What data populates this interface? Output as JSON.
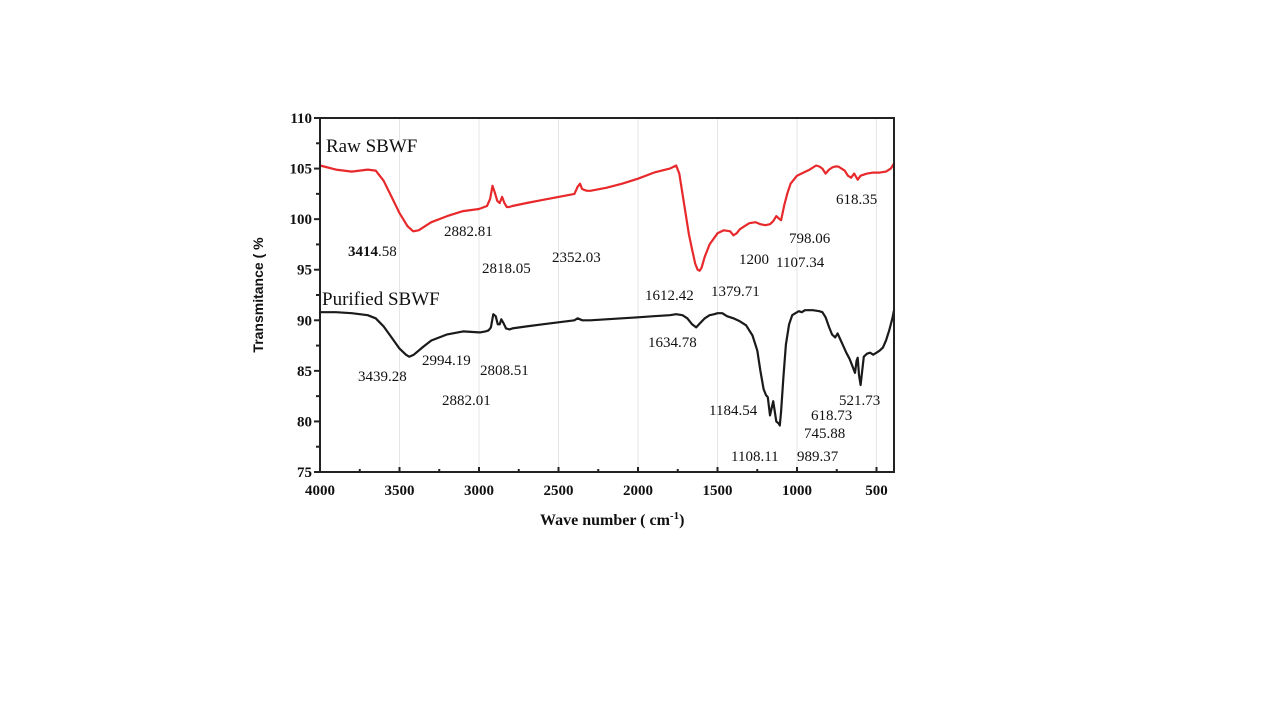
{
  "chart_data": {
    "type": "line",
    "title": "",
    "xlabel": "Wave number ( cm",
    "xlabel_sup": "-1",
    "xlabel_end": ")",
    "ylabel": "Transmitance ( %",
    "xlim": [
      4000,
      390
    ],
    "ylim": [
      75,
      110
    ],
    "x_ticks": [
      4000,
      3500,
      3000,
      2500,
      2000,
      1500,
      1000,
      500
    ],
    "x_tick_labels": [
      "4000",
      "3500",
      "3000",
      "2500",
      "2000",
      "1500",
      "1000",
      "500"
    ],
    "y_ticks": [
      75,
      80,
      85,
      90,
      95,
      100,
      105,
      110
    ],
    "y_tick_labels": [
      "75",
      "80",
      "85",
      "90",
      "95",
      "100",
      "105",
      "110"
    ],
    "grid": "vertical",
    "colors": {
      "raw": "#e8292b",
      "purified": "#1a1a1a",
      "axis": "#222222",
      "grid": "#e6e6e6"
    },
    "series": [
      {
        "name": "Raw SBWF",
        "label": "Raw SBWF",
        "x": [
          4000,
          3900,
          3800,
          3700,
          3650,
          3600,
          3550,
          3500,
          3450,
          3414,
          3380,
          3300,
          3200,
          3100,
          3000,
          2950,
          2930,
          2915,
          2900,
          2885,
          2870,
          2855,
          2840,
          2825,
          2810,
          2790,
          2700,
          2600,
          2500,
          2400,
          2380,
          2365,
          2352,
          2340,
          2320,
          2300,
          2200,
          2100,
          2000,
          1900,
          1800,
          1760,
          1740,
          1720,
          1700,
          1680,
          1660,
          1640,
          1625,
          1612,
          1600,
          1580,
          1550,
          1500,
          1460,
          1420,
          1400,
          1380,
          1360,
          1330,
          1300,
          1260,
          1230,
          1200,
          1170,
          1150,
          1130,
          1110,
          1100,
          1080,
          1060,
          1040,
          1000,
          960,
          920,
          880,
          860,
          840,
          820,
          798,
          780,
          760,
          740,
          720,
          700,
          680,
          660,
          640,
          618,
          600,
          560,
          520,
          480,
          440,
          410,
          390
        ],
        "y": [
          105.3,
          104.9,
          104.7,
          104.9,
          104.8,
          103.8,
          102.2,
          100.6,
          99.3,
          98.8,
          98.9,
          99.7,
          100.3,
          100.8,
          101.0,
          101.3,
          102.0,
          103.3,
          102.6,
          101.8,
          101.6,
          102.2,
          101.6,
          101.2,
          101.2,
          101.3,
          101.6,
          101.9,
          102.2,
          102.5,
          103.2,
          103.5,
          103.0,
          102.9,
          102.8,
          102.8,
          103.1,
          103.5,
          104.0,
          104.6,
          105.0,
          105.3,
          104.5,
          102.5,
          100.5,
          98.5,
          97.0,
          95.6,
          95.0,
          94.9,
          95.2,
          96.3,
          97.5,
          98.6,
          98.9,
          98.8,
          98.4,
          98.6,
          99.0,
          99.3,
          99.6,
          99.7,
          99.5,
          99.4,
          99.5,
          99.8,
          100.3,
          100.0,
          99.9,
          101.4,
          102.6,
          103.5,
          104.3,
          104.6,
          104.9,
          105.3,
          105.2,
          105.0,
          104.5,
          104.9,
          105.1,
          105.2,
          105.2,
          105.0,
          104.8,
          104.3,
          104.1,
          104.5,
          103.9,
          104.3,
          104.5,
          104.6,
          104.6,
          104.7,
          105.0,
          105.5
        ]
      },
      {
        "name": "Purified SBWF",
        "label": "Purified SBWF",
        "x": [
          4000,
          3900,
          3800,
          3700,
          3650,
          3600,
          3550,
          3500,
          3460,
          3439,
          3410,
          3350,
          3300,
          3200,
          3100,
          3000,
          2994,
          2960,
          2940,
          2925,
          2910,
          2895,
          2882,
          2870,
          2860,
          2845,
          2830,
          2808,
          2790,
          2700,
          2600,
          2500,
          2400,
          2380,
          2350,
          2300,
          2200,
          2100,
          2000,
          1900,
          1800,
          1760,
          1720,
          1690,
          1660,
          1634,
          1610,
          1580,
          1550,
          1520,
          1500,
          1470,
          1440,
          1400,
          1360,
          1320,
          1280,
          1250,
          1230,
          1210,
          1195,
          1184,
          1170,
          1150,
          1130,
          1115,
          1108,
          1100,
          1085,
          1070,
          1050,
          1030,
          1010,
          989,
          970,
          950,
          900,
          860,
          840,
          820,
          800,
          780,
          760,
          745,
          730,
          710,
          690,
          670,
          650,
          635,
          625,
          618,
          610,
          600,
          580,
          560,
          540,
          521,
          500,
          480,
          460,
          440,
          420,
          400,
          390
        ],
        "y": [
          90.8,
          90.8,
          90.7,
          90.5,
          90.2,
          89.4,
          88.3,
          87.2,
          86.6,
          86.4,
          86.6,
          87.4,
          88.0,
          88.6,
          88.9,
          88.8,
          88.8,
          88.9,
          89.0,
          89.3,
          90.6,
          90.4,
          89.6,
          89.6,
          90.1,
          89.7,
          89.2,
          89.1,
          89.2,
          89.4,
          89.6,
          89.8,
          90.0,
          90.2,
          90.0,
          90.0,
          90.1,
          90.2,
          90.3,
          90.4,
          90.5,
          90.6,
          90.5,
          90.2,
          89.6,
          89.3,
          89.7,
          90.2,
          90.5,
          90.6,
          90.7,
          90.7,
          90.4,
          90.2,
          89.9,
          89.5,
          88.5,
          87.0,
          85.0,
          83.2,
          82.6,
          82.4,
          80.6,
          82.0,
          80.0,
          79.8,
          79.6,
          81.0,
          84.5,
          87.6,
          89.6,
          90.5,
          90.7,
          90.9,
          90.8,
          91.0,
          91.0,
          90.9,
          90.8,
          90.3,
          89.4,
          88.6,
          88.3,
          88.7,
          88.2,
          87.5,
          86.8,
          86.2,
          85.4,
          84.8,
          86.0,
          86.3,
          84.6,
          83.6,
          86.4,
          86.7,
          86.8,
          86.6,
          86.8,
          87.0,
          87.3,
          88.0,
          89.0,
          90.2,
          91.0
        ]
      }
    ],
    "annotations": [
      {
        "text_bold": "3414",
        "text": ".58",
        "series": "Raw SBWF"
      },
      {
        "text": "2882.81",
        "series": "Raw SBWF"
      },
      {
        "text": "2818.05",
        "series": "Raw SBWF"
      },
      {
        "text": "2352.03",
        "series": "Raw SBWF"
      },
      {
        "text": "1612.42",
        "series": "Raw SBWF"
      },
      {
        "text": "1379.71",
        "series": "Raw SBWF"
      },
      {
        "text": "1200",
        "series": "Raw SBWF"
      },
      {
        "text": "1107.34",
        "series": "Raw SBWF"
      },
      {
        "text": "798.06",
        "series": "Raw SBWF"
      },
      {
        "text": "618.35",
        "series": "Raw SBWF"
      },
      {
        "text": "3439.28",
        "series": "Purified SBWF"
      },
      {
        "text": "2994.19",
        "series": "Purified SBWF"
      },
      {
        "text": "2808.51",
        "series": "Purified SBWF"
      },
      {
        "text": "2882.01",
        "series": "Purified SBWF"
      },
      {
        "text": "1634.78",
        "series": "Purified SBWF"
      },
      {
        "text": "1184.54",
        "series": "Purified SBWF"
      },
      {
        "text": "1108.11",
        "series": "Purified SBWF"
      },
      {
        "text": "989.37",
        "series": "Purified SBWF"
      },
      {
        "text": "618.73",
        "series": "Purified SBWF"
      },
      {
        "text": "745.88",
        "series": "Purified SBWF"
      },
      {
        "text": "521.73",
        "series": "Purified SBWF"
      }
    ]
  }
}
